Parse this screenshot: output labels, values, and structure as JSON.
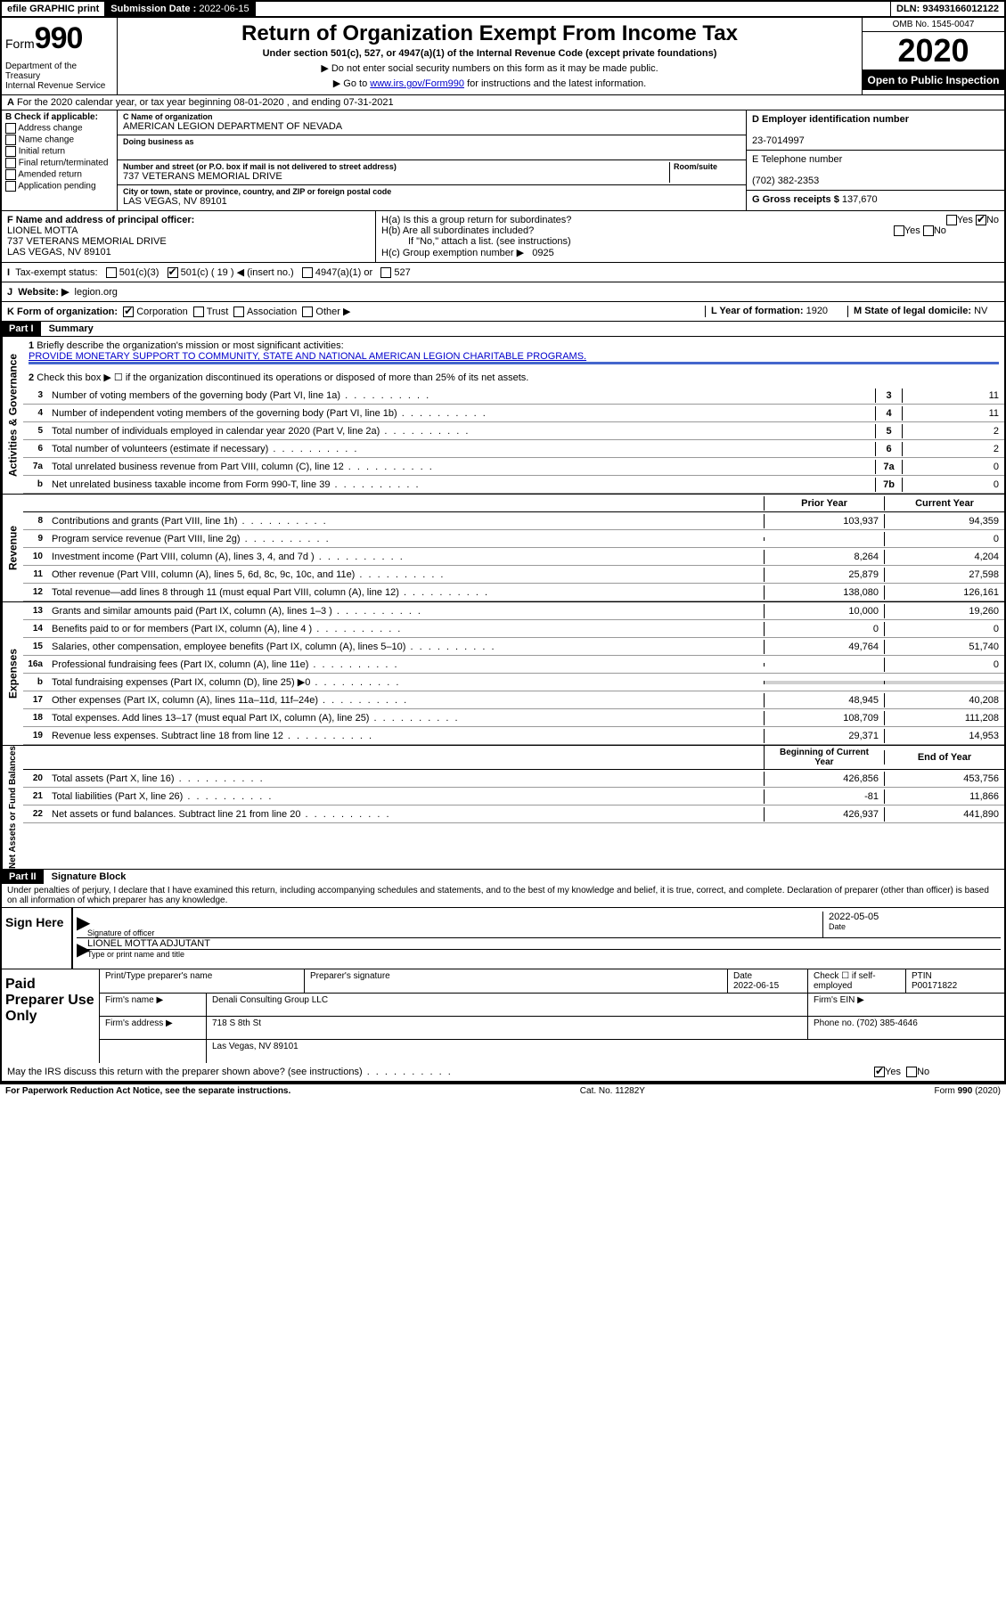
{
  "topbar": {
    "efile": "efile GRAPHIC print",
    "subdate_lbl": "Submission Date :",
    "subdate": "2022-06-15",
    "dln_lbl": "DLN:",
    "dln": "93493166012122"
  },
  "header": {
    "form_word": "Form",
    "form_num": "990",
    "dept": "Department of the Treasury\nInternal Revenue Service",
    "title": "Return of Organization Exempt From Income Tax",
    "sub": "Under section 501(c), 527, or 4947(a)(1) of the Internal Revenue Code (except private foundations)",
    "sub2": "▶ Do not enter social security numbers on this form as it may be made public.",
    "sub3": "▶ Go to www.irs.gov/Form990 for instructions and the latest information.",
    "link": "www.irs.gov/Form990",
    "omb": "OMB No. 1545-0047",
    "year": "2020",
    "inspect": "Open to Public Inspection"
  },
  "rowA": "For the 2020 calendar year, or tax year beginning 08-01-2020    , and ending 07-31-2021",
  "colB": {
    "lbl": "B Check if applicable:",
    "opts": [
      "Address change",
      "Name change",
      "Initial return",
      "Final return/terminated",
      "Amended return",
      "Application pending"
    ]
  },
  "colC": {
    "name_lbl": "C Name of organization",
    "name": "AMERICAN LEGION DEPARTMENT OF NEVADA",
    "dba_lbl": "Doing business as",
    "dba": "",
    "addr_lbl": "Number and street (or P.O. box if mail is not delivered to street address)",
    "room_lbl": "Room/suite",
    "addr": "737 VETERANS MEMORIAL DRIVE",
    "city_lbl": "City or town, state or province, country, and ZIP or foreign postal code",
    "city": "LAS VEGAS, NV  89101"
  },
  "colD": {
    "ein_lbl": "D Employer identification number",
    "ein": "23-7014997",
    "phone_lbl": "E Telephone number",
    "phone": "(702) 382-2353",
    "gross_lbl": "G Gross receipts $",
    "gross": "137,670"
  },
  "rowF": {
    "lbl": "F  Name and address of principal officer:",
    "name": "LIONEL MOTTA",
    "addr1": "737 VETERANS MEMORIAL DRIVE",
    "addr2": "LAS VEGAS, NV  89101"
  },
  "rowH": {
    "ha": "H(a)  Is this a group return for subordinates?",
    "hb": "H(b)  Are all subordinates included?",
    "hc_note": "If \"No,\" attach a list. (see instructions)",
    "hc": "H(c)  Group exemption number ▶",
    "hc_val": "0925",
    "yes": "Yes",
    "no": "No"
  },
  "rowI": {
    "lbl": "Tax-exempt status:",
    "o1": "501(c)(3)",
    "o2": "501(c) ( 19 ) ◀ (insert no.)",
    "o3": "4947(a)(1) or",
    "o4": "527"
  },
  "rowJ": {
    "lbl": "Website: ▶",
    "val": "legion.org"
  },
  "rowK": {
    "lbl": "K Form of organization:",
    "opts": [
      "Corporation",
      "Trust",
      "Association",
      "Other ▶"
    ],
    "L_lbl": "L Year of formation:",
    "L_val": "1920",
    "M_lbl": "M State of legal domicile:",
    "M_val": "NV"
  },
  "part1": {
    "hdr": "Part I",
    "title": "Summary",
    "l1_lbl": "Briefly describe the organization's mission or most significant activities:",
    "l1_val": "PROVIDE MONETARY SUPPORT TO COMMUNITY, STATE AND NATIONAL AMERICAN LEGION CHARITABLE PROGRAMS.",
    "l2": "Check this box ▶ ☐  if the organization discontinued its operations or disposed of more than 25% of its net assets.",
    "sidebar_gov": "Activities & Governance",
    "sidebar_rev": "Revenue",
    "sidebar_exp": "Expenses",
    "sidebar_net": "Net Assets or Fund Balances",
    "col_prior": "Prior Year",
    "col_curr": "Current Year",
    "col_beg": "Beginning of Current Year",
    "col_end": "End of Year",
    "lines_gov": [
      {
        "n": "3",
        "t": "Number of voting members of the governing body (Part VI, line 1a)",
        "b": "3",
        "v": "11"
      },
      {
        "n": "4",
        "t": "Number of independent voting members of the governing body (Part VI, line 1b)",
        "b": "4",
        "v": "11"
      },
      {
        "n": "5",
        "t": "Total number of individuals employed in calendar year 2020 (Part V, line 2a)",
        "b": "5",
        "v": "2"
      },
      {
        "n": "6",
        "t": "Total number of volunteers (estimate if necessary)",
        "b": "6",
        "v": "2"
      },
      {
        "n": "7a",
        "t": "Total unrelated business revenue from Part VIII, column (C), line 12",
        "b": "7a",
        "v": "0"
      },
      {
        "n": "b",
        "t": "Net unrelated business taxable income from Form 990-T, line 39",
        "b": "7b",
        "v": "0"
      }
    ],
    "lines_rev": [
      {
        "n": "8",
        "t": "Contributions and grants (Part VIII, line 1h)",
        "p": "103,937",
        "c": "94,359"
      },
      {
        "n": "9",
        "t": "Program service revenue (Part VIII, line 2g)",
        "p": "",
        "c": "0"
      },
      {
        "n": "10",
        "t": "Investment income (Part VIII, column (A), lines 3, 4, and 7d )",
        "p": "8,264",
        "c": "4,204"
      },
      {
        "n": "11",
        "t": "Other revenue (Part VIII, column (A), lines 5, 6d, 8c, 9c, 10c, and 11e)",
        "p": "25,879",
        "c": "27,598"
      },
      {
        "n": "12",
        "t": "Total revenue—add lines 8 through 11 (must equal Part VIII, column (A), line 12)",
        "p": "138,080",
        "c": "126,161"
      }
    ],
    "lines_exp": [
      {
        "n": "13",
        "t": "Grants and similar amounts paid (Part IX, column (A), lines 1–3 )",
        "p": "10,000",
        "c": "19,260"
      },
      {
        "n": "14",
        "t": "Benefits paid to or for members (Part IX, column (A), line 4 )",
        "p": "0",
        "c": "0"
      },
      {
        "n": "15",
        "t": "Salaries, other compensation, employee benefits (Part IX, column (A), lines 5–10)",
        "p": "49,764",
        "c": "51,740"
      },
      {
        "n": "16a",
        "t": "Professional fundraising fees (Part IX, column (A), line 11e)",
        "p": "",
        "c": "0"
      },
      {
        "n": "b",
        "t": "Total fundraising expenses (Part IX, column (D), line 25) ▶0",
        "p": "GRAY",
        "c": "GRAY"
      },
      {
        "n": "17",
        "t": "Other expenses (Part IX, column (A), lines 11a–11d, 11f–24e)",
        "p": "48,945",
        "c": "40,208"
      },
      {
        "n": "18",
        "t": "Total expenses. Add lines 13–17 (must equal Part IX, column (A), line 25)",
        "p": "108,709",
        "c": "111,208"
      },
      {
        "n": "19",
        "t": "Revenue less expenses. Subtract line 18 from line 12",
        "p": "29,371",
        "c": "14,953"
      }
    ],
    "lines_net": [
      {
        "n": "20",
        "t": "Total assets (Part X, line 16)",
        "p": "426,856",
        "c": "453,756"
      },
      {
        "n": "21",
        "t": "Total liabilities (Part X, line 26)",
        "p": "-81",
        "c": "11,866"
      },
      {
        "n": "22",
        "t": "Net assets or fund balances. Subtract line 21 from line 20",
        "p": "426,937",
        "c": "441,890"
      }
    ]
  },
  "part2": {
    "hdr": "Part II",
    "title": "Signature Block",
    "decl": "Under penalties of perjury, I declare that I have examined this return, including accompanying schedules and statements, and to the best of my knowledge and belief, it is true, correct, and complete. Declaration of preparer (other than officer) is based on all information of which preparer has any knowledge."
  },
  "sign": {
    "lbl": "Sign Here",
    "sig_lbl": "Signature of officer",
    "date_lbl": "Date",
    "date": "2022-05-05",
    "name": "LIONEL MOTTA  ADJUTANT",
    "name_lbl": "Type or print name and title"
  },
  "prep": {
    "lbl": "Paid Preparer Use Only",
    "r1": {
      "c1": "Print/Type preparer's name",
      "c2": "Preparer's signature",
      "c3_lbl": "Date",
      "c3": "2022-06-15",
      "c4": "Check ☐ if self-employed",
      "c5_lbl": "PTIN",
      "c5": "P00171822"
    },
    "r2": {
      "lbl": "Firm's name    ▶",
      "val": "Denali Consulting Group LLC",
      "ein_lbl": "Firm's EIN ▶",
      "ein": ""
    },
    "r3": {
      "lbl": "Firm's address ▶",
      "val": "718 S 8th St",
      "phone_lbl": "Phone no.",
      "phone": "(702) 385-4646"
    },
    "r4": {
      "val": "Las Vegas, NV  89101"
    }
  },
  "discuss": {
    "txt": "May the IRS discuss this return with the preparer shown above? (see instructions)",
    "yes": "Yes",
    "no": "No"
  },
  "footer": {
    "left": "For Paperwork Reduction Act Notice, see the separate instructions.",
    "mid": "Cat. No. 11282Y",
    "right": "Form 990 (2020)"
  }
}
